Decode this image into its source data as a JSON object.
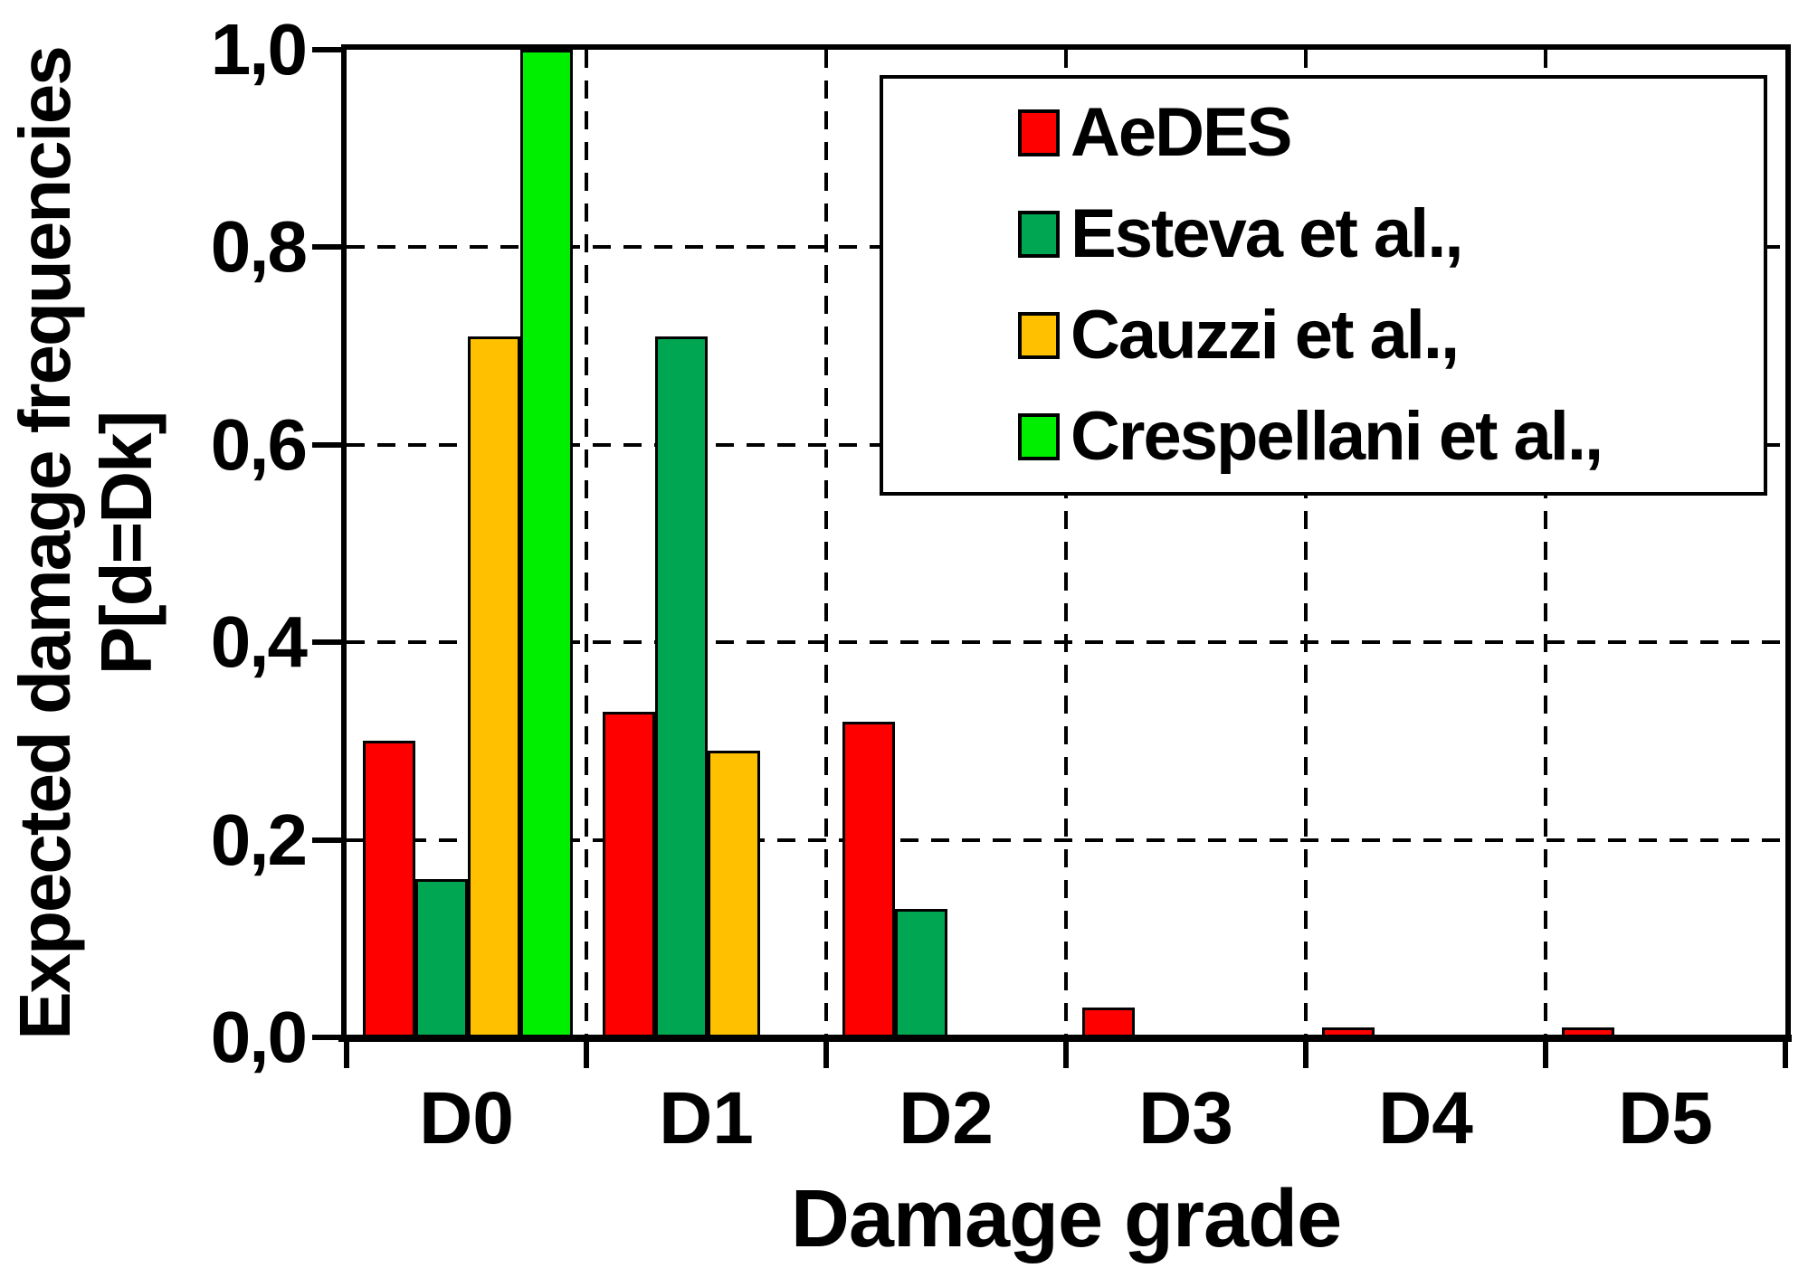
{
  "chart_data": {
    "type": "bar",
    "categories": [
      "D0",
      "D1",
      "D2",
      "D3",
      "D4",
      "D5"
    ],
    "series": [
      {
        "name": "AeDES",
        "color": "#ff0000",
        "values": [
          0.3,
          0.33,
          0.32,
          0.03,
          0.01,
          0.01
        ]
      },
      {
        "name": "Esteva et al.,",
        "color": "#00a651",
        "values": [
          0.16,
          0.71,
          0.13,
          0,
          0,
          0
        ]
      },
      {
        "name": "Cauzzi et al.,",
        "color": "#ffc000",
        "values": [
          0.71,
          0.29,
          0,
          0,
          0,
          0
        ]
      },
      {
        "name": "Crespellani et al.,",
        "color": "#00ee00",
        "values": [
          1.0,
          0,
          0,
          0,
          0,
          0
        ]
      }
    ],
    "xlabel": "Damage grade",
    "ylabel_line1": "Expected damage frequencies",
    "ylabel_line2": "P[d=Dk]",
    "ylim": [
      0,
      1
    ],
    "yticks": [
      {
        "value": 0.0,
        "label": "0,0"
      },
      {
        "value": 0.2,
        "label": "0,2"
      },
      {
        "value": 0.4,
        "label": "0,4"
      },
      {
        "value": 0.6,
        "label": "0,6"
      },
      {
        "value": 0.8,
        "label": "0,8"
      },
      {
        "value": 1.0,
        "label": "1,0"
      }
    ],
    "grid": "dashed",
    "legend_position": "top-right",
    "frame_color": "#000000",
    "background_color": "#ffffff"
  }
}
